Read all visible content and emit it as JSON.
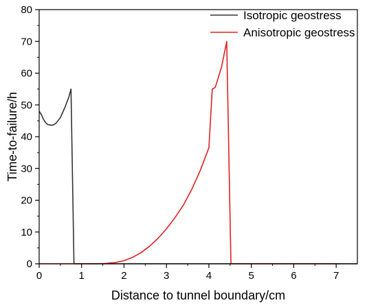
{
  "chart_data": {
    "type": "line",
    "title": "",
    "xlabel": "Distance to tunnel boundary/cm",
    "ylabel": "Time-to-failure/h",
    "xlim": [
      0,
      7.5
    ],
    "ylim": [
      0,
      80
    ],
    "xticks": [
      0,
      1,
      2,
      3,
      4,
      5,
      6,
      7
    ],
    "yticks": [
      0,
      10,
      20,
      30,
      40,
      50,
      60,
      70,
      80
    ],
    "grid": false,
    "legend_position": "top-right",
    "series": [
      {
        "name": "Isotropic geostress",
        "color": "#333333",
        "x": [
          0,
          0.05,
          0.1,
          0.15,
          0.2,
          0.3,
          0.35,
          0.4,
          0.5,
          0.6,
          0.7,
          0.75,
          0.82,
          0.9,
          1.5,
          2.0,
          3.0,
          4.0,
          4.5,
          5.0,
          6.0,
          7.0,
          7.1,
          7.5
        ],
        "y": [
          48,
          47,
          45.5,
          44.5,
          43.8,
          43.6,
          43.8,
          44.3,
          46,
          49,
          52.5,
          55,
          0,
          0,
          0,
          0,
          0,
          0,
          0,
          0,
          0,
          0,
          0,
          0
        ]
      },
      {
        "name": "Anisotropic geostress",
        "color": "#e02020",
        "x": [
          0,
          1.0,
          1.5,
          1.8,
          2.0,
          2.2,
          2.4,
          2.6,
          2.8,
          3.0,
          3.2,
          3.4,
          3.6,
          3.8,
          4.0,
          4.08,
          4.15,
          4.3,
          4.42,
          4.52,
          4.6,
          5.0,
          6.0,
          7.0,
          7.1
        ],
        "y": [
          0,
          0,
          0.05,
          0.4,
          1.0,
          2.0,
          3.5,
          5.5,
          8.0,
          11.0,
          14.5,
          18.5,
          23.5,
          29.5,
          36.5,
          55,
          55.5,
          62,
          70,
          0,
          0,
          0,
          0,
          0,
          0
        ]
      }
    ]
  }
}
